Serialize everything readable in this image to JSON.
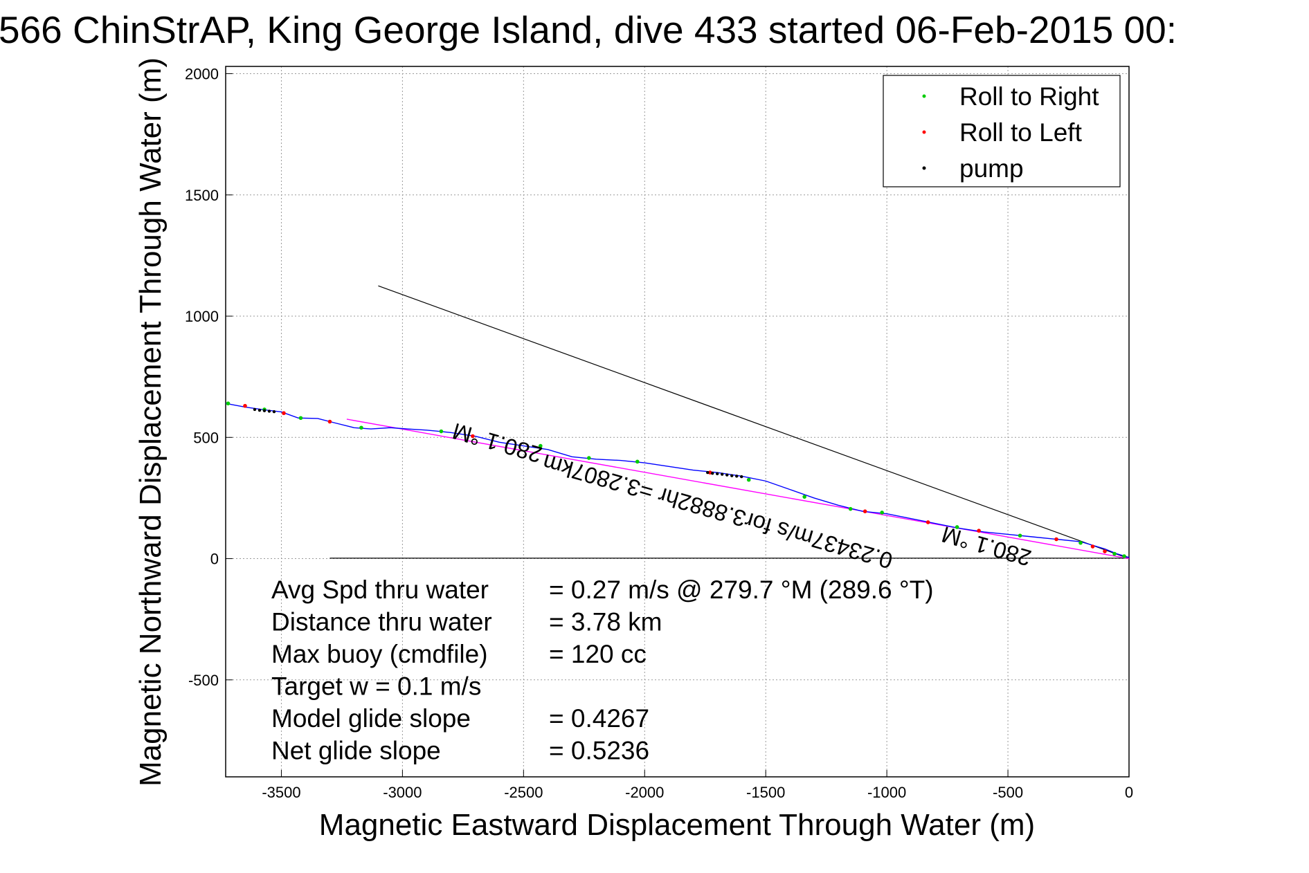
{
  "chart_data": {
    "type": "line",
    "title": "566 ChinStrAP, King George Island, dive 433 started 06-Feb-2015 00:",
    "xlabel": "Magnetic Eastward Displacement Through Water (m)",
    "ylabel": "Magnetic Northward Displacement Through Water (m)",
    "xlim": [
      -3730,
      0
    ],
    "ylim": [
      -900,
      2030
    ],
    "x_ticks": [
      -3500,
      -3000,
      -2500,
      -2000,
      -1500,
      -1000,
      -500,
      0
    ],
    "y_ticks": [
      -500,
      0,
      500,
      1000,
      1500,
      2000
    ],
    "grid": true,
    "legend_placement": "top-right",
    "legend": [
      {
        "label": "Roll to Right",
        "color": "#00cc00"
      },
      {
        "label": "Roll to Left",
        "color": "#ff0000"
      },
      {
        "label": "pump",
        "color": "#000000"
      }
    ],
    "track": {
      "color": "#0000ff",
      "x": [
        -3730,
        -3650,
        -3580,
        -3500,
        -3430,
        -3350,
        -3280,
        -3200,
        -3130,
        -3050,
        -2980,
        -2900,
        -2800,
        -2700,
        -2600,
        -2500,
        -2400,
        -2300,
        -2200,
        -2100,
        -2000,
        -1900,
        -1800,
        -1700,
        -1600,
        -1500,
        -1400,
        -1300,
        -1200,
        -1100,
        -1000,
        -900,
        -800,
        -700,
        -600,
        -500,
        -400,
        -300,
        -200,
        -100,
        -50,
        0
      ],
      "y": [
        640,
        625,
        615,
        605,
        580,
        578,
        560,
        540,
        535,
        540,
        535,
        530,
        520,
        505,
        480,
        465,
        450,
        420,
        410,
        405,
        395,
        380,
        365,
        355,
        340,
        320,
        285,
        250,
        220,
        195,
        185,
        165,
        145,
        125,
        110,
        100,
        90,
        80,
        70,
        40,
        20,
        5
      ]
    },
    "fit_line": {
      "color": "#ff00ff",
      "x": [
        -3230,
        0
      ],
      "y": [
        575,
        0
      ]
    },
    "heading_line": {
      "color": "#000000",
      "x": [
        -3100,
        0
      ],
      "y": [
        1125,
        0
      ]
    },
    "base_line": {
      "color": "#000000",
      "x": [
        -3300,
        0
      ],
      "y": [
        2,
        2
      ]
    },
    "roll_right_points": {
      "x": [
        -3720,
        -3570,
        -3420,
        -3170,
        -2840,
        -2430,
        -2230,
        -2030,
        -1570,
        -1340,
        -1150,
        -1020,
        -710,
        -450,
        -200,
        -60,
        -20
      ],
      "y": [
        640,
        615,
        580,
        540,
        525,
        465,
        415,
        400,
        325,
        255,
        205,
        190,
        130,
        95,
        65,
        20,
        10
      ]
    },
    "roll_left_points": {
      "x": [
        -3650,
        -3490,
        -3300,
        -2710,
        -1730,
        -1090,
        -830,
        -620,
        -300,
        -150,
        -100
      ],
      "y": [
        630,
        600,
        565,
        505,
        355,
        195,
        150,
        115,
        80,
        50,
        30
      ]
    },
    "pump_points": {
      "x": [
        -3610,
        -3590,
        -3570,
        -3550,
        -3530,
        -1740,
        -1720,
        -1700,
        -1680,
        -1660,
        -1640,
        -1620,
        -1600
      ],
      "y": [
        615,
        612,
        610,
        608,
        606,
        355,
        352,
        350,
        348,
        345,
        342,
        340,
        338
      ]
    },
    "annotations": [
      {
        "text": "280.1 °M",
        "x": -2600,
        "y": 508,
        "rotation_deg": 196
      },
      {
        "text": "0.23437m/s for3.8882hr =3.2807km",
        "x": -1690,
        "y": 225,
        "rotation_deg": 196
      },
      {
        "text": "280.1 °M",
        "x": -580,
        "y": 82,
        "rotation_deg": 196
      }
    ],
    "stats": [
      {
        "label": "Avg Spd thru water",
        "value": "=  0.27 m/s @ 279.7 °M (289.6 °T)"
      },
      {
        "label": "Distance thru water",
        "value": "=  3.78 km"
      },
      {
        "label": "Max buoy (cmdfile)",
        "value": "= 120 cc"
      },
      {
        "label": "Target w    = 0.1 m/s",
        "value": ""
      },
      {
        "label": "Model glide slope",
        "value": "= 0.4267"
      },
      {
        "label": "Net glide slope",
        "value": "= 0.5236"
      }
    ]
  }
}
